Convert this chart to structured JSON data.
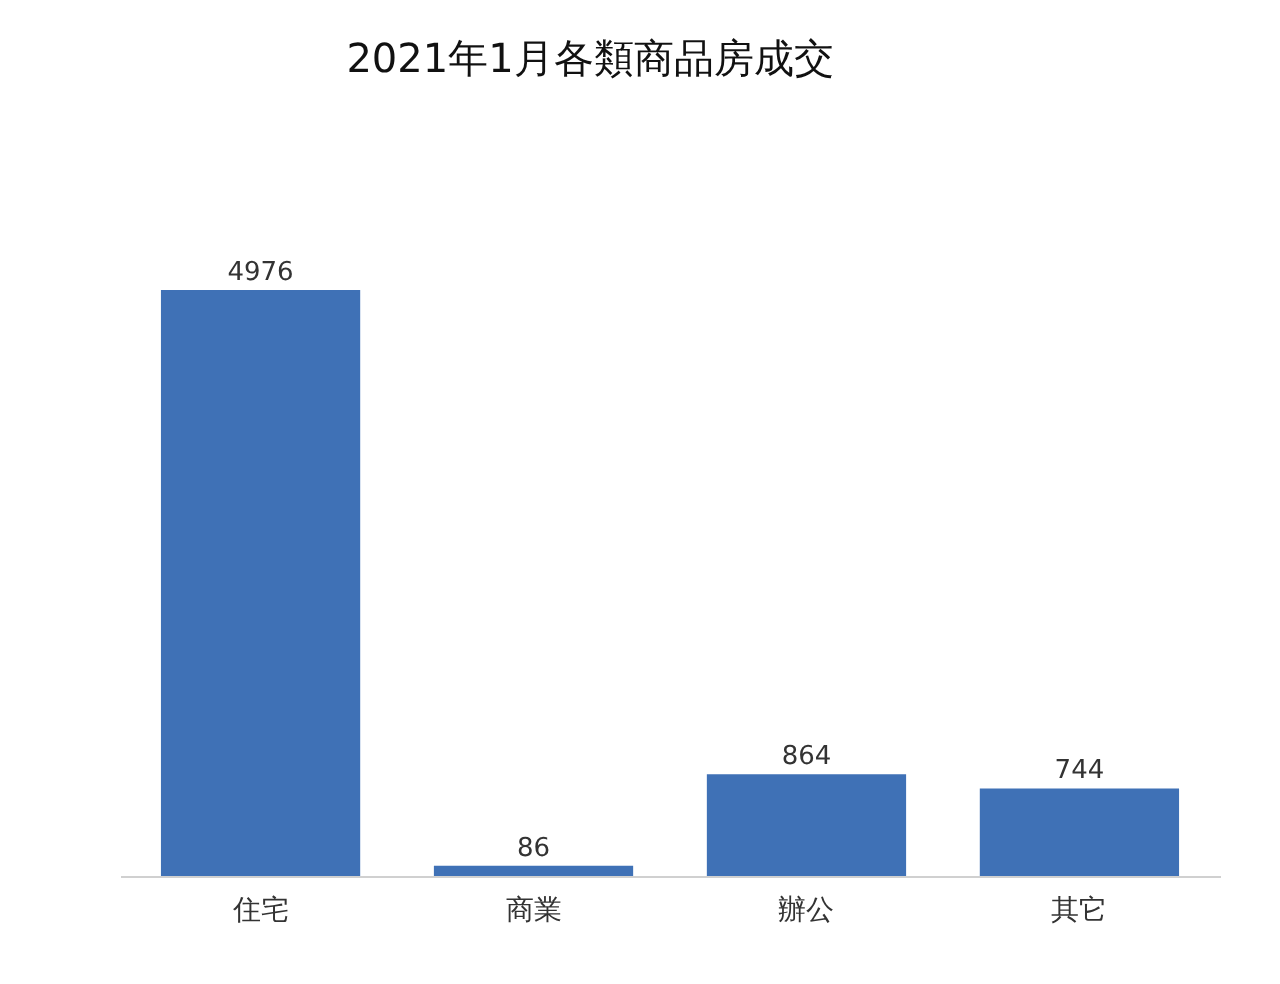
{
  "chart_data": {
    "type": "bar",
    "title": "2021年1月各類商品房成交",
    "categories": [
      "住宅",
      "商業",
      "辦公",
      "其它"
    ],
    "values": [
      4976,
      86,
      864,
      744
    ],
    "color": "#3f71b6",
    "data_labels": true
  }
}
